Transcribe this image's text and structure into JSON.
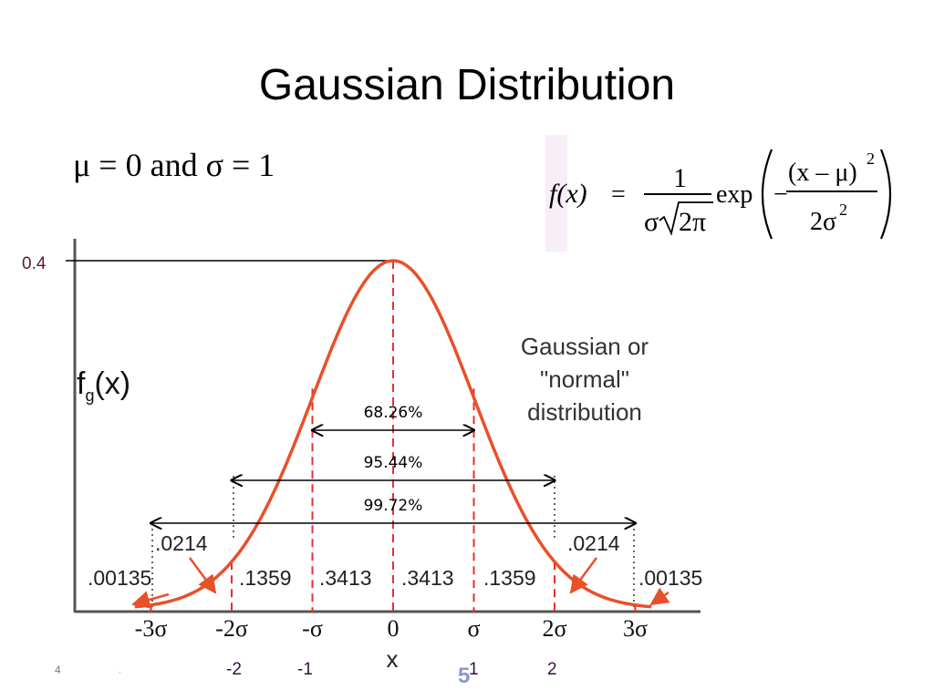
{
  "title": "Gaussian Distribution",
  "params_text": "μ = 0 and σ = 1",
  "formula": {
    "lhs": "f(x)",
    "eq": "=",
    "numerator": "1",
    "denominator_sigma": "σ",
    "denominator_root": "2π",
    "exp": "exp",
    "minus": "−",
    "inner_numerator": "(x – μ)",
    "inner_numerator_power": "2",
    "inner_denominator": "2σ",
    "inner_denominator_power": "2"
  },
  "graph": {
    "ylabel_main": "f",
    "ylabel_sub": "g",
    "ylabel_tail": "(x)",
    "xlabel": "x",
    "x_tick_labels": [
      "-3σ",
      "-2σ",
      "-σ",
      "0",
      "σ",
      "2σ",
      "3σ"
    ],
    "caption_lines": [
      "Gaussian or",
      "\"normal\"",
      "distribution"
    ],
    "ranges": [
      {
        "label": "68.26%",
        "from": -1,
        "to": 1
      },
      {
        "label": "95.44%",
        "from": -2,
        "to": 2
      },
      {
        "label": "99.72%",
        "from": -3,
        "to": 3
      }
    ],
    "areas": [
      {
        "label": ".00135",
        "side": "left-tail"
      },
      {
        "label": ".0214",
        "side": "left"
      },
      {
        "label": ".1359",
        "range": [
          -2,
          -1
        ]
      },
      {
        "label": ".3413",
        "range": [
          -1,
          0
        ]
      },
      {
        "label": ".3413",
        "range": [
          0,
          1
        ]
      },
      {
        "label": ".1359",
        "range": [
          1,
          2
        ]
      },
      {
        "label": ".0214",
        "side": "right"
      },
      {
        "label": ".00135",
        "side": "right-tail"
      }
    ],
    "curve_color": "#e8502a",
    "marker_color": "#e8302a",
    "mean": 0,
    "sigma": 1
  },
  "y_tick_label": "0.4",
  "bottom_numbers": [
    "-2",
    "-1",
    "1",
    "2"
  ],
  "page_number": "4",
  "page_dot": ".",
  "slide_number": "5"
}
